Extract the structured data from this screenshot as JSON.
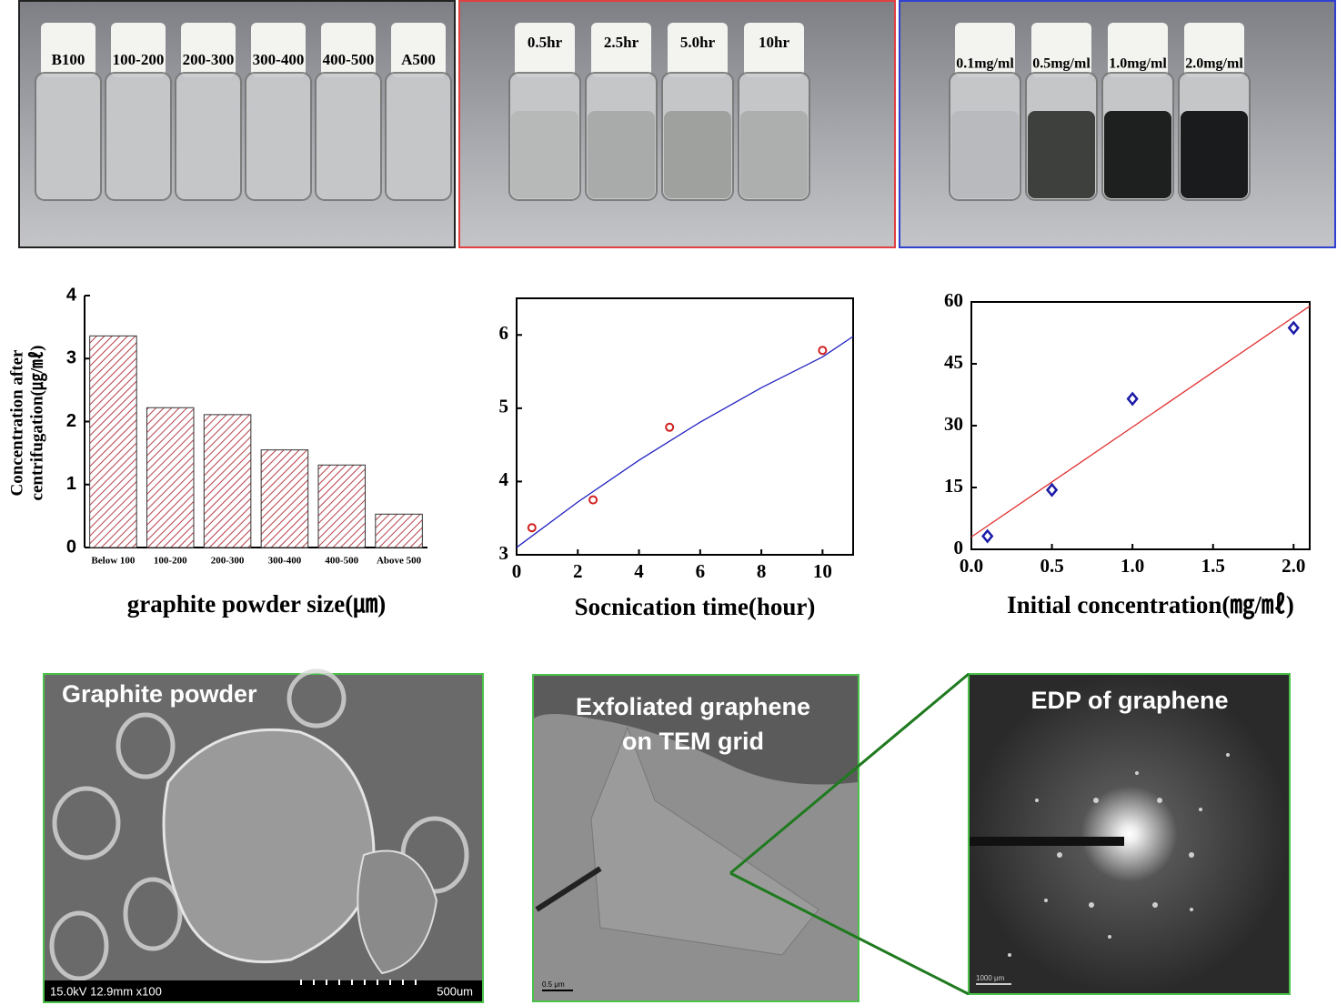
{
  "photos": [
    {
      "labels": [
        "B100",
        "100-200",
        "200-300",
        "300-400",
        "400-500",
        "A500"
      ]
    },
    {
      "labels": [
        "0.5hr",
        "2.5hr",
        "5.0hr",
        "10hr"
      ]
    },
    {
      "labels": [
        "0.1mg/ml",
        "0.5mg/ml",
        "1.0mg/ml",
        "2.0mg/ml"
      ]
    }
  ],
  "micrographs": [
    {
      "title": "Graphite powder",
      "info": "15.0kV 12.9mm x100",
      "scale": "500um"
    },
    {
      "title": [
        "Exfoliated graphene",
        "on TEM grid"
      ],
      "scale": "0.5 μm"
    },
    {
      "title": "EDP of graphene",
      "scale": "1000 μm"
    }
  ],
  "chart_data": [
    {
      "type": "bar",
      "frame": "axes",
      "categories": [
        "Below 100",
        "100-200",
        "200-300",
        "300-400",
        "400-500",
        "Above 500"
      ],
      "values": [
        3.36,
        2.22,
        2.11,
        1.55,
        1.31,
        0.53
      ],
      "color": "#b5404a",
      "hatch": true,
      "ylim": [
        0,
        4
      ],
      "yticks": [
        0,
        1,
        2,
        3,
        4
      ],
      "xlabel": "graphite powder size(㎛)",
      "ylabel": [
        "Concentration after",
        "centrifugation(㎍/㎖)"
      ]
    },
    {
      "type": "scatter",
      "frame": "box",
      "series": [
        {
          "mode": "markers",
          "marker": "circle",
          "color": "#d02020",
          "x": [
            0.5,
            2.5,
            5,
            10
          ],
          "values": [
            3.37,
            3.75,
            4.74,
            5.79
          ]
        },
        {
          "mode": "line",
          "color": "#2020c0",
          "x": [
            0,
            2,
            4,
            6,
            8,
            10,
            11
          ],
          "values": [
            3.1,
            3.72,
            4.29,
            4.81,
            5.28,
            5.7,
            5.98
          ]
        }
      ],
      "xlim": [
        0,
        11
      ],
      "xticks": [
        0,
        2,
        4,
        6,
        8,
        10
      ],
      "ylim": [
        3,
        6.5
      ],
      "yticks": [
        3,
        4,
        5,
        6
      ],
      "xlabel": "Socnication time(hour)"
    },
    {
      "type": "scatter",
      "frame": "box",
      "series": [
        {
          "mode": "markers",
          "marker": "diamond",
          "color": "#1a1aa8",
          "x": [
            0.1,
            0.5,
            1.0,
            2.0
          ],
          "values": [
            3.2,
            14.4,
            36.5,
            53.7
          ]
        },
        {
          "mode": "line",
          "color": "#e03030",
          "x": [
            0,
            2.1
          ],
          "values": [
            3,
            59
          ]
        }
      ],
      "xlim": [
        0,
        2.1
      ],
      "xticks": [
        {
          "value": 0,
          "label": "0.0"
        },
        {
          "value": 0.5,
          "label": "0.5"
        },
        {
          "value": 1,
          "label": "1.0"
        },
        {
          "value": 1.5,
          "label": "1.5"
        },
        {
          "value": 2,
          "label": "2.0"
        }
      ],
      "ylim": [
        0,
        60
      ],
      "yticks": [
        0,
        15,
        30,
        45,
        60
      ],
      "xlabel": "Initial concentration(㎎/㎖)"
    }
  ]
}
